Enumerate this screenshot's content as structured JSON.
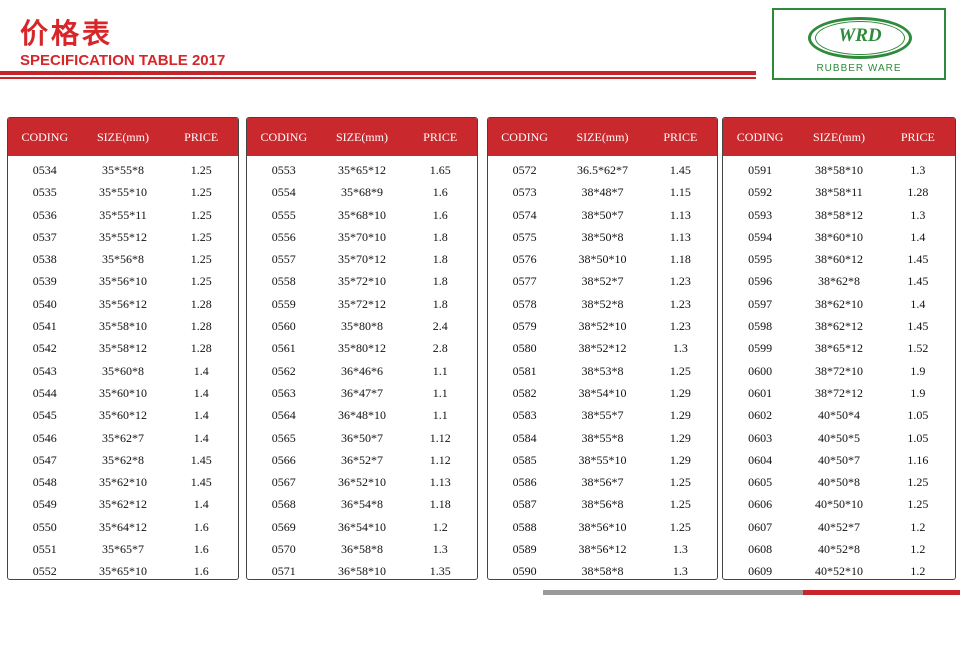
{
  "header": {
    "title_cn": "价格表",
    "title_en": "SPECIFICATION TABLE 2017"
  },
  "logo": {
    "mark": "WRD",
    "subtitle": "RUBBER WARE"
  },
  "columns": {
    "coding": "CODING",
    "size": "SIZE(mm)",
    "price": "PRICE"
  },
  "panels": [
    {
      "rows": [
        [
          "0534",
          "35*55*8",
          "1.25"
        ],
        [
          "0535",
          "35*55*10",
          "1.25"
        ],
        [
          "0536",
          "35*55*11",
          "1.25"
        ],
        [
          "0537",
          "35*55*12",
          "1.25"
        ],
        [
          "0538",
          "35*56*8",
          "1.25"
        ],
        [
          "0539",
          "35*56*10",
          "1.25"
        ],
        [
          "0540",
          "35*56*12",
          "1.28"
        ],
        [
          "0541",
          "35*58*10",
          "1.28"
        ],
        [
          "0542",
          "35*58*12",
          "1.28"
        ],
        [
          "0543",
          "35*60*8",
          "1.4"
        ],
        [
          "0544",
          "35*60*10",
          "1.4"
        ],
        [
          "0545",
          "35*60*12",
          "1.4"
        ],
        [
          "0546",
          "35*62*7",
          "1.4"
        ],
        [
          "0547",
          "35*62*8",
          "1.45"
        ],
        [
          "0548",
          "35*62*10",
          "1.45"
        ],
        [
          "0549",
          "35*62*12",
          "1.4"
        ],
        [
          "0550",
          "35*64*12",
          "1.6"
        ],
        [
          "0551",
          "35*65*7",
          "1.6"
        ],
        [
          "0552",
          "35*65*10",
          "1.6"
        ]
      ]
    },
    {
      "rows": [
        [
          "0553",
          "35*65*12",
          "1.65"
        ],
        [
          "0554",
          "35*68*9",
          "1.6"
        ],
        [
          "0555",
          "35*68*10",
          "1.6"
        ],
        [
          "0556",
          "35*70*10",
          "1.8"
        ],
        [
          "0557",
          "35*70*12",
          "1.8"
        ],
        [
          "0558",
          "35*72*10",
          "1.8"
        ],
        [
          "0559",
          "35*72*12",
          "1.8"
        ],
        [
          "0560",
          "35*80*8",
          "2.4"
        ],
        [
          "0561",
          "35*80*12",
          "2.8"
        ],
        [
          "0562",
          "36*46*6",
          "1.1"
        ],
        [
          "0563",
          "36*47*7",
          "1.1"
        ],
        [
          "0564",
          "36*48*10",
          "1.1"
        ],
        [
          "0565",
          "36*50*7",
          "1.12"
        ],
        [
          "0566",
          "36*52*7",
          "1.12"
        ],
        [
          "0567",
          "36*52*10",
          "1.13"
        ],
        [
          "0568",
          "36*54*8",
          "1.18"
        ],
        [
          "0569",
          "36*54*10",
          "1.2"
        ],
        [
          "0570",
          "36*58*8",
          "1.3"
        ],
        [
          "0571",
          "36*58*10",
          "1.35"
        ]
      ]
    },
    {
      "rows": [
        [
          "0572",
          "36.5*62*7",
          "1.45"
        ],
        [
          "0573",
          "38*48*7",
          "1.15"
        ],
        [
          "0574",
          "38*50*7",
          "1.13"
        ],
        [
          "0575",
          "38*50*8",
          "1.13"
        ],
        [
          "0576",
          "38*50*10",
          "1.18"
        ],
        [
          "0577",
          "38*52*7",
          "1.23"
        ],
        [
          "0578",
          "38*52*8",
          "1.23"
        ],
        [
          "0579",
          "38*52*10",
          "1.23"
        ],
        [
          "0580",
          "38*52*12",
          "1.3"
        ],
        [
          "0581",
          "38*53*8",
          "1.25"
        ],
        [
          "0582",
          "38*54*10",
          "1.29"
        ],
        [
          "0583",
          "38*55*7",
          "1.29"
        ],
        [
          "0584",
          "38*55*8",
          "1.29"
        ],
        [
          "0585",
          "38*55*10",
          "1.29"
        ],
        [
          "0586",
          "38*56*7",
          "1.25"
        ],
        [
          "0587",
          "38*56*8",
          "1.25"
        ],
        [
          "0588",
          "38*56*10",
          "1.25"
        ],
        [
          "0589",
          "38*56*12",
          "1.3"
        ],
        [
          "0590",
          "38*58*8",
          "1.3"
        ]
      ]
    },
    {
      "rows": [
        [
          "0591",
          "38*58*10",
          "1.3"
        ],
        [
          "0592",
          "38*58*11",
          "1.28"
        ],
        [
          "0593",
          "38*58*12",
          "1.3"
        ],
        [
          "0594",
          "38*60*10",
          "1.4"
        ],
        [
          "0595",
          "38*60*12",
          "1.45"
        ],
        [
          "0596",
          "38*62*8",
          "1.45"
        ],
        [
          "0597",
          "38*62*10",
          "1.4"
        ],
        [
          "0598",
          "38*62*12",
          "1.45"
        ],
        [
          "0599",
          "38*65*12",
          "1.52"
        ],
        [
          "0600",
          "38*72*10",
          "1.9"
        ],
        [
          "0601",
          "38*72*12",
          "1.9"
        ],
        [
          "0602",
          "40*50*4",
          "1.05"
        ],
        [
          "0603",
          "40*50*5",
          "1.05"
        ],
        [
          "0604",
          "40*50*7",
          "1.16"
        ],
        [
          "0605",
          "40*50*8",
          "1.25"
        ],
        [
          "0606",
          "40*50*10",
          "1.25"
        ],
        [
          "0607",
          "40*52*7",
          "1.2"
        ],
        [
          "0608",
          "40*52*8",
          "1.2"
        ],
        [
          "0609",
          "40*52*10",
          "1.2"
        ]
      ]
    }
  ]
}
